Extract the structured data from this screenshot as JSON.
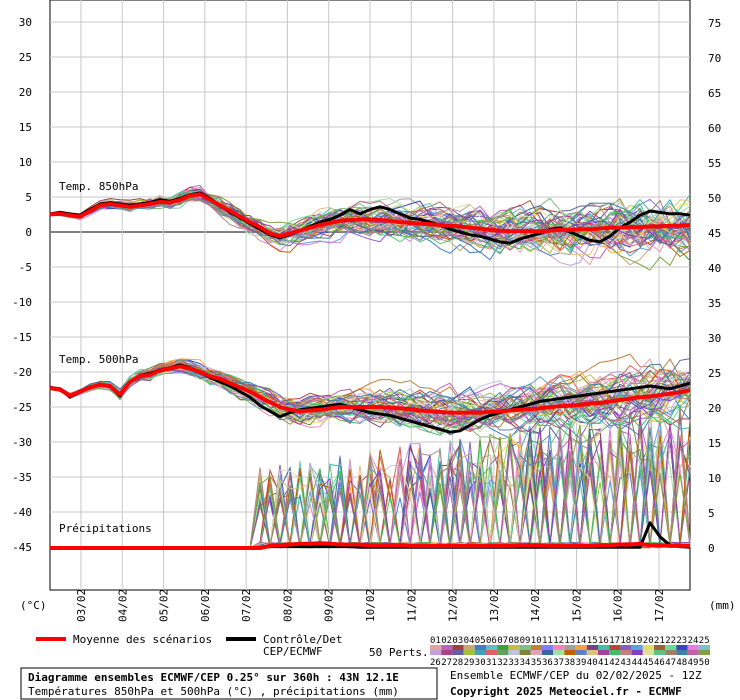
{
  "chart_data": {
    "type": "line",
    "left_axis": {
      "unit_label": "(°C)",
      "ticks": [
        30,
        25,
        20,
        15,
        10,
        5,
        0,
        -5,
        -10,
        -15,
        -20,
        -25,
        -30,
        -35,
        -40,
        -45
      ],
      "range": [
        -45,
        30
      ]
    },
    "right_axis": {
      "unit_label": "(mm)",
      "ticks": [
        75,
        70,
        65,
        60,
        55,
        50,
        45,
        40,
        35,
        30,
        25,
        20,
        15,
        10,
        5,
        0
      ],
      "range": [
        0,
        75
      ]
    },
    "x_ticks": [
      "03/02",
      "04/02",
      "05/02",
      "06/02",
      "07/02",
      "08/02",
      "09/02",
      "10/02",
      "11/02",
      "12/02",
      "13/02",
      "14/02",
      "15/02",
      "16/02",
      "17/02"
    ],
    "grid": true,
    "panel_labels": {
      "t850": "Temp. 850hPa",
      "t500": "Temp. 500hPa",
      "precip": "Précipitations"
    },
    "series": [
      {
        "name": "Moyenne des scénarios",
        "color": "#ff0000",
        "t850": [
          2.5,
          2.6,
          2.4,
          2.2,
          3.0,
          3.8,
          4.0,
          3.8,
          3.6,
          3.8,
          4.0,
          4.3,
          4.2,
          4.6,
          5.2,
          5.4,
          4.6,
          3.8,
          3.0,
          2.2,
          1.4,
          0.7,
          -0.2,
          -0.6,
          -0.2,
          0.2,
          0.6,
          1.0,
          1.3,
          1.6,
          1.7,
          1.8,
          1.8,
          1.7,
          1.6,
          1.4,
          1.3,
          1.2,
          1.1,
          1.0,
          0.9,
          0.8,
          0.6,
          0.5,
          0.3,
          0.2,
          0.1,
          0.1,
          0.1,
          0.1,
          0.2,
          0.3,
          0.3,
          0.4,
          0.4,
          0.5,
          0.6,
          0.6,
          0.7,
          0.7,
          0.8,
          0.8,
          0.9,
          0.9,
          1.0
        ],
        "t500": [
          -22.3,
          -22.5,
          -23.4,
          -22.8,
          -22.2,
          -21.8,
          -22.0,
          -23.2,
          -21.4,
          -20.6,
          -20.4,
          -19.8,
          -19.5,
          -19.2,
          -19.5,
          -20.0,
          -20.6,
          -21.0,
          -21.6,
          -22.2,
          -22.8,
          -23.6,
          -24.3,
          -25.0,
          -25.4,
          -25.6,
          -25.5,
          -25.4,
          -25.2,
          -25.0,
          -25.0,
          -25.0,
          -25.0,
          -25.0,
          -25.1,
          -25.2,
          -25.3,
          -25.5,
          -25.6,
          -25.7,
          -25.8,
          -25.8,
          -25.8,
          -25.8,
          -25.7,
          -25.6,
          -25.5,
          -25.4,
          -25.3,
          -25.2,
          -25.0,
          -24.9,
          -24.8,
          -24.7,
          -24.5,
          -24.4,
          -24.2,
          -24.0,
          -23.8,
          -23.6,
          -23.5,
          -23.3,
          -23.1,
          -22.9,
          -22.6
        ],
        "precip": [
          0,
          0,
          0,
          0,
          0,
          0,
          0,
          0,
          0,
          0,
          0,
          0,
          0,
          0,
          0,
          0,
          0,
          0,
          0,
          0,
          0,
          0,
          0.3,
          0.4,
          0.5,
          0.6,
          0.6,
          0.7,
          0.6,
          0.5,
          0.5,
          0.5,
          0.4,
          0.4,
          0.4,
          0.4,
          0.3,
          0.3,
          0.3,
          0.3,
          0.3,
          0.3,
          0.3,
          0.3,
          0.3,
          0.3,
          0.3,
          0.4,
          0.4,
          0.4,
          0.3,
          0.3,
          0.3,
          0.3,
          0.3,
          0.4,
          0.4,
          0.5,
          0.5,
          0.6,
          0.4,
          0.4,
          0.3,
          0.3,
          0.3
        ]
      },
      {
        "name": "Contrôle/Det CEP/ECMWF",
        "color": "#000000",
        "t850": [
          2.6,
          2.8,
          2.6,
          2.4,
          3.2,
          4.0,
          4.2,
          4.0,
          3.8,
          4.0,
          4.2,
          4.6,
          4.4,
          4.8,
          5.3,
          5.6,
          4.8,
          3.8,
          2.8,
          2.0,
          1.2,
          0.4,
          -0.4,
          -0.8,
          -0.4,
          0.2,
          0.8,
          1.4,
          1.8,
          2.4,
          3.2,
          2.6,
          3.2,
          3.6,
          3.2,
          2.6,
          2.0,
          1.8,
          1.4,
          1.0,
          0.4,
          0.0,
          -0.4,
          -0.6,
          -1.0,
          -1.4,
          -1.6,
          -1.0,
          -0.6,
          -0.2,
          0.4,
          0.6,
          0.0,
          -0.6,
          -1.2,
          -1.4,
          -0.6,
          0.6,
          1.4,
          2.4,
          3.0,
          2.8,
          2.6,
          2.6,
          2.4
        ],
        "t500": [
          -22.2,
          -22.4,
          -23.6,
          -22.9,
          -22.2,
          -21.8,
          -22.0,
          -23.4,
          -21.4,
          -20.5,
          -20.2,
          -19.7,
          -19.4,
          -19.0,
          -19.4,
          -20.0,
          -20.8,
          -21.4,
          -22.0,
          -22.8,
          -23.6,
          -24.8,
          -25.6,
          -26.4,
          -25.8,
          -25.4,
          -25.2,
          -25.0,
          -24.8,
          -24.6,
          -25.0,
          -25.4,
          -25.8,
          -26.0,
          -26.2,
          -26.6,
          -27.0,
          -27.4,
          -27.8,
          -28.2,
          -28.6,
          -28.4,
          -27.6,
          -26.8,
          -26.2,
          -25.8,
          -25.4,
          -25.0,
          -24.6,
          -24.2,
          -24.0,
          -23.8,
          -23.6,
          -23.4,
          -23.2,
          -23.0,
          -22.8,
          -22.6,
          -22.4,
          -22.2,
          -22.0,
          -22.2,
          -22.4,
          -22.0,
          -21.6
        ],
        "precip": [
          0,
          0,
          0,
          0,
          0,
          0,
          0,
          0,
          0,
          0,
          0,
          0,
          0,
          0,
          0,
          0,
          0,
          0,
          0,
          0,
          0,
          0,
          0.2,
          0.2,
          0.2,
          0.2,
          0.2,
          0.2,
          0.2,
          0.2,
          0.2,
          0.1,
          0.1,
          0.1,
          0.1,
          0.1,
          0.1,
          0.1,
          0.1,
          0.1,
          0.1,
          0.1,
          0.1,
          0.1,
          0.1,
          0.1,
          0.1,
          0.1,
          0.1,
          0.1,
          0.1,
          0.1,
          0.1,
          0.1,
          0.1,
          0.1,
          0.1,
          0.1,
          0.1,
          0.1,
          3.6,
          1.6,
          0.4,
          0.2,
          0.1
        ]
      }
    ],
    "ensemble": {
      "count": 50,
      "label": "50 Perts.",
      "member_labels_top": [
        "01",
        "02",
        "03",
        "04",
        "05",
        "06",
        "07",
        "08",
        "09",
        "10",
        "11",
        "12",
        "13",
        "14",
        "15",
        "16",
        "17",
        "18",
        "19",
        "20",
        "21",
        "22",
        "23",
        "24",
        "25"
      ],
      "member_labels_bottom": [
        "26",
        "27",
        "28",
        "29",
        "30",
        "31",
        "32",
        "33",
        "34",
        "35",
        "36",
        "37",
        "38",
        "39",
        "40",
        "41",
        "42",
        "43",
        "44",
        "45",
        "46",
        "47",
        "48",
        "49",
        "50"
      ],
      "colors": [
        "#e8a0a0",
        "#c060c0",
        "#a04040",
        "#c8a878",
        "#4080c0",
        "#60c0c0",
        "#40a040",
        "#c0c040",
        "#80c080",
        "#c08040",
        "#8080ff",
        "#ff80c0",
        "#a0a0a0",
        "#ffa040",
        "#804080",
        "#40c0a0",
        "#c04040",
        "#8060c0",
        "#60a0e0",
        "#e0e060",
        "#a06040",
        "#60e0a0",
        "#4040c0",
        "#e080e0",
        "#80c0c0",
        "#c0a0e0",
        "#b04080",
        "#6060a0",
        "#a0c040",
        "#40a0c0",
        "#e06060",
        "#60a060",
        "#c0c0e0",
        "#808040",
        "#e0a0c0",
        "#4060a0",
        "#a0e0a0",
        "#c06000",
        "#6080c0",
        "#e0c080",
        "#a040a0",
        "#40c060",
        "#c08080",
        "#8040c0",
        "#e0e0a0",
        "#60c080",
        "#a08060",
        "#4080a0",
        "#c060a0",
        "#80a040"
      ]
    },
    "legend": {
      "mean": "Moyenne des scénarios",
      "control_line1": "Contrôle/Det",
      "control_line2": "CEP/ECMWF"
    },
    "footer": {
      "title": "Diagramme ensembles ECMWF/CEP 0.25° sur 360h : 43N 12.1E",
      "subtitle": "Températures 850hPa et 500hPa (°C) , précipitations (mm)",
      "run": "Ensemble ECMWF/CEP du 02/02/2025 - 12Z",
      "copyright": "Copyright 2025 Meteociel.fr - ECMWF"
    }
  }
}
